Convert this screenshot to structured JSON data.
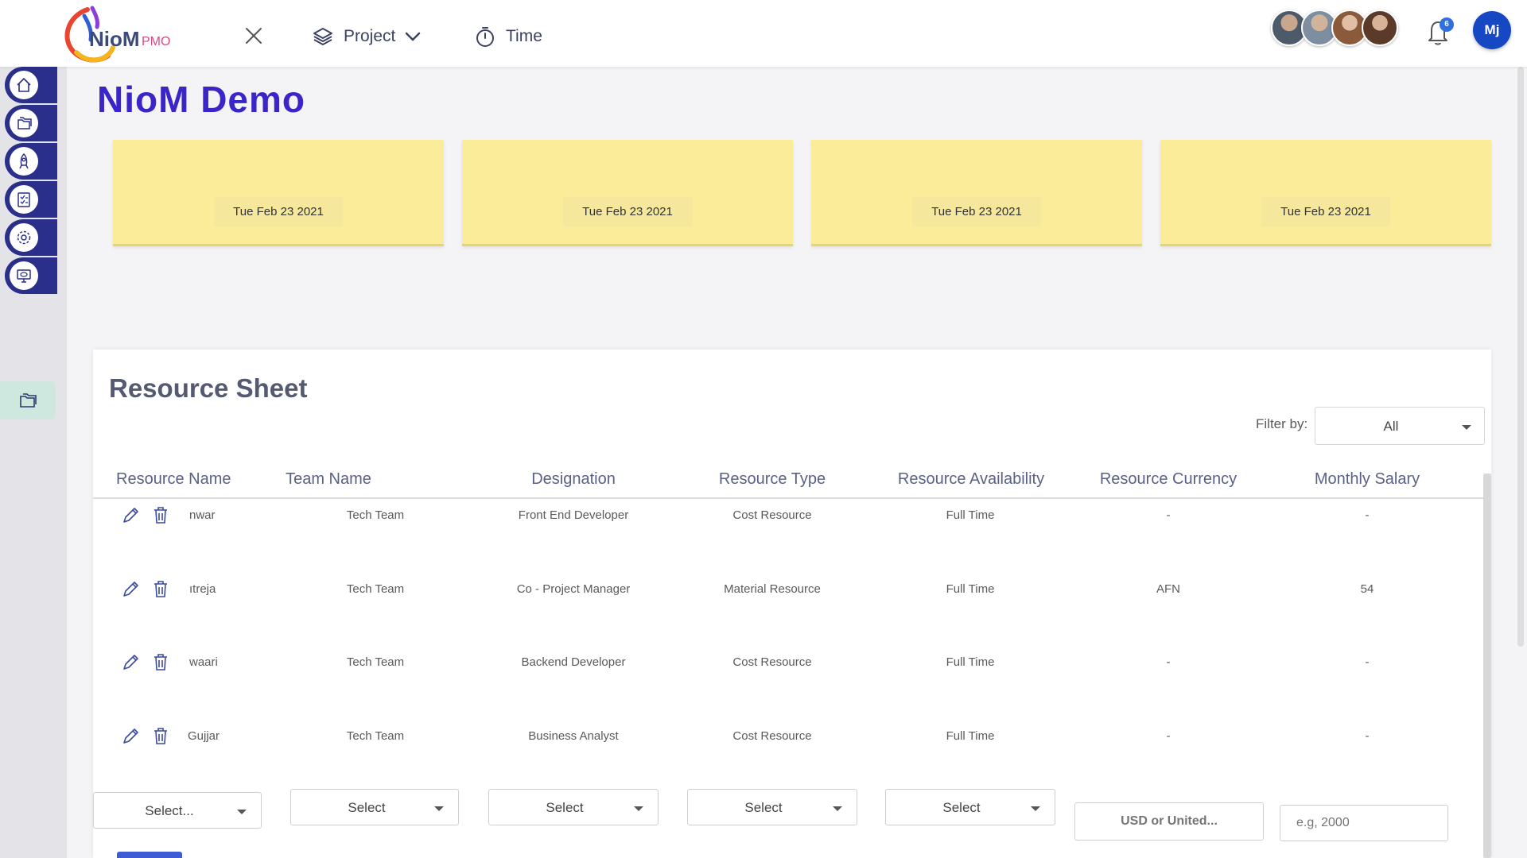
{
  "header": {
    "logo_text": "NioM",
    "logo_sub": "PMO",
    "nav": [
      {
        "label": "Project",
        "icon": "layers-icon"
      },
      {
        "label": "Time",
        "icon": "stopwatch-icon"
      }
    ],
    "notification_count": "6",
    "user_initials": "Mj"
  },
  "sidebar": {
    "items": [
      "home-icon",
      "folders-icon",
      "rocket-icon",
      "checklist-icon",
      "gear-icon",
      "monitor-eye-icon"
    ],
    "active": "folder-icon"
  },
  "page_title": "NioM Demo",
  "cards": [
    {
      "date": "Tue Feb 23 2021"
    },
    {
      "date": "Tue Feb 23 2021"
    },
    {
      "date": "Tue Feb 23 2021"
    },
    {
      "date": "Tue Feb 23 2021"
    }
  ],
  "resource_sheet": {
    "title": "Resource Sheet",
    "filter_label": "Filter by:",
    "filter_value": "All",
    "columns": [
      "Resource Name",
      "Team Name",
      "Designation",
      "Resource Type",
      "Resource Availability",
      "Resource Currency",
      "Monthly Salary"
    ],
    "rows": [
      {
        "name": "nwar",
        "team": "Tech Team",
        "designation": "Front End Developer",
        "type": "Cost Resource",
        "availability": "Full Time",
        "currency": "-",
        "salary": "-"
      },
      {
        "name": "ıtreja",
        "team": "Tech Team",
        "designation": "Co - Project Manager",
        "type": "Material Resource",
        "availability": "Full Time",
        "currency": "AFN",
        "salary": "54"
      },
      {
        "name": "waari",
        "team": "Tech Team",
        "designation": "Backend Developer",
        "type": "Cost Resource",
        "availability": "Full Time",
        "currency": "-",
        "salary": "-"
      },
      {
        "name": "Gujjar",
        "team": "Tech Team",
        "designation": "Business Analyst",
        "type": "Cost Resource",
        "availability": "Full Time",
        "currency": "-",
        "salary": "-"
      }
    ],
    "new_row": {
      "name_select": "Select...",
      "team_select": "Select",
      "designation_select": "Select",
      "type_select": "Select",
      "availability_select": "Select",
      "currency_placeholder": "USD or United...",
      "salary_placeholder": "e.g, 2000"
    }
  },
  "colors": {
    "brand": "#3a25c8",
    "sidebar_button": "#2b2f8c",
    "card": "#fbec9a",
    "user_avatar": "#1748c4"
  }
}
